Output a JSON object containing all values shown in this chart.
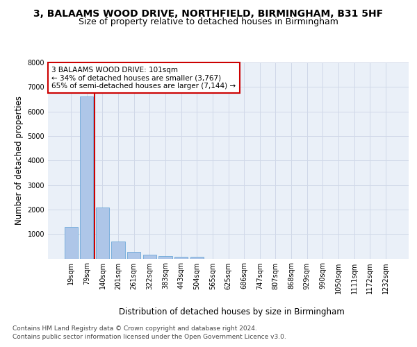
{
  "title_line1": "3, BALAAMS WOOD DRIVE, NORTHFIELD, BIRMINGHAM, B31 5HF",
  "title_line2": "Size of property relative to detached houses in Birmingham",
  "xlabel": "Distribution of detached houses by size in Birmingham",
  "ylabel": "Number of detached properties",
  "categories": [
    "19sqm",
    "79sqm",
    "140sqm",
    "201sqm",
    "261sqm",
    "322sqm",
    "383sqm",
    "443sqm",
    "504sqm",
    "565sqm",
    "625sqm",
    "686sqm",
    "747sqm",
    "807sqm",
    "868sqm",
    "929sqm",
    "990sqm",
    "1050sqm",
    "1111sqm",
    "1172sqm",
    "1232sqm"
  ],
  "values": [
    1300,
    6600,
    2080,
    690,
    280,
    150,
    100,
    60,
    60,
    0,
    0,
    0,
    0,
    0,
    0,
    0,
    0,
    0,
    0,
    0,
    0
  ],
  "bar_color": "#aec6e8",
  "bar_edge_color": "#5a9fd4",
  "vline_x_idx": 1,
  "vline_color": "#cc0000",
  "annotation_text": "3 BALAAMS WOOD DRIVE: 101sqm\n← 34% of detached houses are smaller (3,767)\n65% of semi-detached houses are larger (7,144) →",
  "annotation_box_color": "#cc0000",
  "ylim": [
    0,
    8000
  ],
  "yticks": [
    0,
    1000,
    2000,
    3000,
    4000,
    5000,
    6000,
    7000,
    8000
  ],
  "grid_color": "#d0d8e8",
  "bg_color": "#eaf0f8",
  "footer_line1": "Contains HM Land Registry data © Crown copyright and database right 2024.",
  "footer_line2": "Contains public sector information licensed under the Open Government Licence v3.0.",
  "title_fontsize": 10,
  "subtitle_fontsize": 9,
  "axis_label_fontsize": 8.5,
  "tick_fontsize": 7,
  "annotation_fontsize": 7.5,
  "footer_fontsize": 6.5
}
